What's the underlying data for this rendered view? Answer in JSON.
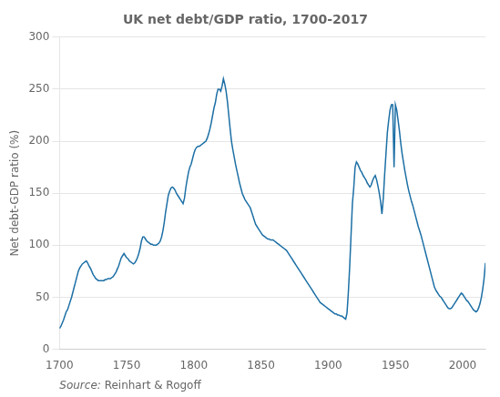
{
  "chart_data": {
    "type": "line",
    "title": "UK net debt/GDP ratio, 1700-2017",
    "ylabel": "Net debt-GDP ratio (%)",
    "annotations": [
      "Source:",
      " Reinhart & Rogoff"
    ],
    "color": "#1c6fa5",
    "grid": "y",
    "xlim": [
      1700,
      2017
    ],
    "ylim": [
      0,
      300
    ],
    "xticks": [
      1700,
      1750,
      1800,
      1850,
      1900,
      1950,
      2000
    ],
    "yticks": [
      0,
      50,
      100,
      150,
      200,
      250,
      300
    ],
    "x": [
      1700,
      1701,
      1702,
      1703,
      1704,
      1705,
      1706,
      1707,
      1708,
      1709,
      1710,
      1711,
      1712,
      1713,
      1714,
      1715,
      1716,
      1717,
      1718,
      1719,
      1720,
      1721,
      1722,
      1723,
      1724,
      1725,
      1726,
      1727,
      1728,
      1729,
      1730,
      1731,
      1732,
      1733,
      1734,
      1735,
      1736,
      1737,
      1738,
      1739,
      1740,
      1741,
      1742,
      1743,
      1744,
      1745,
      1746,
      1747,
      1748,
      1749,
      1750,
      1751,
      1752,
      1753,
      1754,
      1755,
      1756,
      1757,
      1758,
      1759,
      1760,
      1761,
      1762,
      1763,
      1764,
      1765,
      1766,
      1767,
      1768,
      1769,
      1770,
      1771,
      1772,
      1773,
      1774,
      1775,
      1776,
      1777,
      1778,
      1779,
      1780,
      1781,
      1782,
      1783,
      1784,
      1785,
      1786,
      1787,
      1788,
      1789,
      1790,
      1791,
      1792,
      1793,
      1794,
      1795,
      1796,
      1797,
      1798,
      1799,
      1800,
      1801,
      1802,
      1803,
      1804,
      1805,
      1806,
      1807,
      1808,
      1809,
      1810,
      1811,
      1812,
      1813,
      1814,
      1815,
      1816,
      1817,
      1818,
      1819,
      1820,
      1821,
      1822,
      1823,
      1824,
      1825,
      1826,
      1827,
      1828,
      1829,
      1830,
      1831,
      1832,
      1833,
      1834,
      1835,
      1836,
      1837,
      1838,
      1839,
      1840,
      1841,
      1842,
      1843,
      1844,
      1845,
      1846,
      1847,
      1848,
      1849,
      1850,
      1851,
      1852,
      1853,
      1854,
      1855,
      1856,
      1857,
      1858,
      1859,
      1860,
      1861,
      1862,
      1863,
      1864,
      1865,
      1866,
      1867,
      1868,
      1869,
      1870,
      1871,
      1872,
      1873,
      1874,
      1875,
      1876,
      1877,
      1878,
      1879,
      1880,
      1881,
      1882,
      1883,
      1884,
      1885,
      1886,
      1887,
      1888,
      1889,
      1890,
      1891,
      1892,
      1893,
      1894,
      1895,
      1896,
      1897,
      1898,
      1899,
      1900,
      1901,
      1902,
      1903,
      1904,
      1905,
      1906,
      1907,
      1908,
      1909,
      1910,
      1911,
      1912,
      1913,
      1914,
      1915,
      1916,
      1917,
      1918,
      1919,
      1920,
      1921,
      1922,
      1923,
      1924,
      1925,
      1926,
      1927,
      1928,
      1929,
      1930,
      1931,
      1932,
      1933,
      1934,
      1935,
      1936,
      1937,
      1938,
      1939,
      1940,
      1941,
      1942,
      1943,
      1944,
      1945,
      1946,
      1947,
      1948,
      1949,
      1950,
      1951,
      1952,
      1953,
      1954,
      1955,
      1956,
      1957,
      1958,
      1959,
      1960,
      1961,
      1962,
      1963,
      1964,
      1965,
      1966,
      1967,
      1968,
      1969,
      1970,
      1971,
      1972,
      1973,
      1974,
      1975,
      1976,
      1977,
      1978,
      1979,
      1980,
      1981,
      1982,
      1983,
      1984,
      1985,
      1986,
      1987,
      1988,
      1989,
      1990,
      1991,
      1992,
      1993,
      1994,
      1995,
      1996,
      1997,
      1998,
      1999,
      2000,
      2001,
      2002,
      2003,
      2004,
      2005,
      2006,
      2007,
      2008,
      2009,
      2010,
      2011,
      2012,
      2013,
      2014,
      2015,
      2016,
      2017
    ],
    "values": [
      20,
      22,
      25,
      28,
      32,
      36,
      38,
      42,
      46,
      50,
      55,
      60,
      65,
      70,
      75,
      78,
      80,
      82,
      83,
      84,
      85,
      83,
      80,
      78,
      75,
      72,
      70,
      68,
      67,
      66,
      66,
      66,
      66,
      66,
      67,
      67,
      68,
      68,
      68,
      69,
      70,
      72,
      74,
      77,
      80,
      84,
      88,
      90,
      92,
      90,
      88,
      87,
      85,
      84,
      83,
      82,
      83,
      85,
      88,
      92,
      97,
      104,
      108,
      108,
      106,
      104,
      103,
      102,
      101,
      101,
      100,
      100,
      100,
      101,
      102,
      104,
      108,
      114,
      122,
      132,
      140,
      148,
      152,
      155,
      156,
      155,
      153,
      150,
      148,
      146,
      144,
      142,
      140,
      145,
      155,
      163,
      170,
      175,
      178,
      183,
      188,
      192,
      194,
      195,
      195,
      196,
      197,
      198,
      199,
      200,
      203,
      207,
      212,
      218,
      225,
      232,
      237,
      245,
      250,
      250,
      248,
      253,
      260,
      255,
      248,
      238,
      225,
      212,
      200,
      192,
      185,
      178,
      172,
      166,
      160,
      155,
      150,
      147,
      144,
      142,
      140,
      138,
      136,
      132,
      128,
      124,
      120,
      118,
      116,
      114,
      112,
      110,
      109,
      108,
      107,
      106,
      106,
      105,
      105,
      105,
      104,
      103,
      102,
      101,
      100,
      99,
      98,
      97,
      96,
      95,
      93,
      91,
      89,
      87,
      85,
      83,
      81,
      79,
      77,
      75,
      73,
      71,
      69,
      67,
      65,
      63,
      61,
      59,
      57,
      55,
      53,
      51,
      49,
      47,
      45,
      44,
      43,
      42,
      41,
      40,
      39,
      38,
      37,
      36,
      35,
      34,
      34,
      33,
      33,
      32,
      32,
      31,
      30,
      29,
      35,
      55,
      80,
      110,
      140,
      155,
      175,
      180,
      178,
      175,
      172,
      170,
      167,
      165,
      163,
      160,
      158,
      156,
      158,
      162,
      165,
      167,
      163,
      157,
      150,
      142,
      130,
      145,
      168,
      188,
      208,
      220,
      230,
      235,
      235,
      175,
      235,
      230,
      220,
      210,
      198,
      188,
      180,
      172,
      165,
      158,
      152,
      147,
      142,
      138,
      133,
      128,
      123,
      118,
      114,
      110,
      105,
      100,
      95,
      90,
      85,
      80,
      75,
      70,
      65,
      60,
      57,
      55,
      53,
      51,
      50,
      48,
      46,
      44,
      42,
      40,
      39,
      39,
      40,
      42,
      44,
      46,
      48,
      50,
      52,
      54,
      53,
      51,
      49,
      47,
      46,
      44,
      42,
      40,
      38,
      37,
      36,
      37,
      40,
      44,
      50,
      58,
      68,
      83
    ]
  }
}
